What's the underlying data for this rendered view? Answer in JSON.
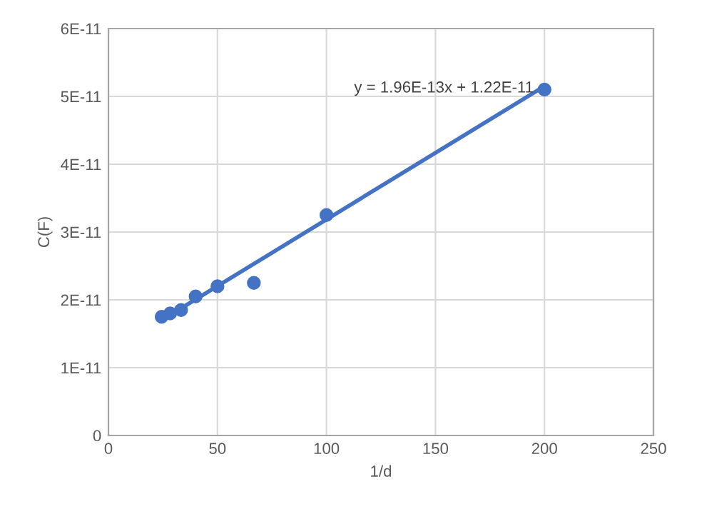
{
  "chart_data": {
    "type": "scatter",
    "xlabel": "1/d",
    "ylabel": "C(F)",
    "series": [
      {
        "type": "scatter",
        "color": "#4472c4",
        "x": [
          24.4,
          28.3,
          33.3,
          40,
          50,
          66.7,
          100,
          200
        ],
        "values": [
          1.75e-11,
          1.8e-11,
          1.85e-11,
          2.05e-11,
          2.2e-11,
          2.25e-11,
          3.25e-11,
          5.1e-11
        ],
        "marker": "circle"
      },
      {
        "type": "line",
        "color": "#4472c4",
        "x": [
          24.4,
          200
        ],
        "values": [
          1.7e-11,
          5.15e-11
        ],
        "marker": "none",
        "line_style": "solid"
      }
    ],
    "annotations": [
      "y = 1.96E-13x + 1.22E-11"
    ],
    "xlim": [
      0,
      250
    ],
    "xticks": [
      0,
      50,
      100,
      150,
      200,
      250
    ],
    "ylim": [
      0,
      6e-11
    ],
    "yticks": [
      0,
      {
        "value": 1e-11,
        "label": "1E-11"
      },
      {
        "value": 2e-11,
        "label": "2E-11"
      },
      {
        "value": 3e-11,
        "label": "3E-11"
      },
      {
        "value": 4e-11,
        "label": "4E-11"
      },
      {
        "value": 5e-11,
        "label": "5E-11"
      },
      {
        "value": 6e-11,
        "label": "6E-11"
      }
    ],
    "grid": true,
    "legend": false
  }
}
